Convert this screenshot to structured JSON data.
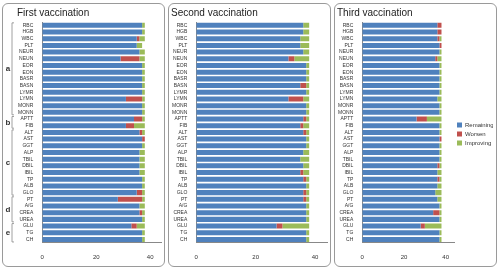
{
  "chart_data": [
    {
      "type": "bar",
      "title": "First vaccination",
      "orientation": "horizontal",
      "stacked": true,
      "grid": false,
      "categories": [
        "RBC",
        "HGB",
        "WBC",
        "PLT",
        "NEUR",
        "NEUN",
        "EOR",
        "EON",
        "BASR",
        "BASN",
        "LYMR",
        "LYMN",
        "MONR",
        "MONN",
        "APTT",
        "FIB",
        "ALT",
        "AST",
        "GGT",
        "ALP",
        "TBIL",
        "DBIL",
        "IBIL",
        "TP",
        "ALB",
        "GLO",
        "PT",
        "A/G",
        "CREA",
        "UREA",
        "GLU",
        "TG",
        "CH"
      ],
      "groups": [
        {
          "label": "a",
          "from": "RBC",
          "to": "MONN"
        },
        {
          "label": "b",
          "from": "APTT",
          "to": "FIB"
        },
        {
          "label": "c",
          "from": "ALT",
          "to": "GLO"
        },
        {
          "label": "d",
          "from": "PT",
          "to": "UREA"
        },
        {
          "label": "e",
          "from": "GLU",
          "to": "CH"
        }
      ],
      "series": [
        {
          "name": "Remaining",
          "color": "#4f81bd",
          "values": [
            37,
            37,
            35,
            35,
            36,
            29,
            37,
            37,
            37,
            37,
            37,
            31,
            37,
            37,
            34,
            31,
            36,
            37,
            37,
            36,
            36,
            36,
            36,
            37,
            37,
            35,
            28,
            36,
            36,
            37,
            33,
            37,
            37
          ]
        },
        {
          "name": "Worsen",
          "color": "#c0504d",
          "values": [
            0,
            0,
            1,
            0,
            0,
            7,
            0,
            0,
            0,
            0,
            0,
            6,
            0,
            0,
            3,
            3,
            1,
            1,
            0,
            0,
            0,
            0,
            0,
            0,
            0,
            2,
            9,
            0,
            1,
            0,
            2,
            0,
            0
          ]
        },
        {
          "name": "Improving",
          "color": "#9bbb59",
          "values": [
            1,
            1,
            2,
            2,
            2,
            2,
            1,
            1,
            1,
            1,
            1,
            1,
            1,
            1,
            1,
            4,
            1,
            0,
            1,
            2,
            2,
            2,
            2,
            1,
            1,
            1,
            1,
            2,
            1,
            1,
            3,
            1,
            1
          ]
        }
      ],
      "xlim": [
        0,
        44
      ],
      "xticks": [
        0,
        20,
        40
      ]
    },
    {
      "type": "bar",
      "title": "Second vaccination",
      "orientation": "horizontal",
      "stacked": true,
      "grid": false,
      "categories": [
        "RBC",
        "HGB",
        "WBC",
        "PLT",
        "NEUR",
        "NEUN",
        "EOR",
        "EON",
        "BASR",
        "BASN",
        "LYMR",
        "LYMN",
        "MONR",
        "MONN",
        "APTT",
        "FIB",
        "ALT",
        "AST",
        "GGT",
        "ALP",
        "TBIL",
        "DBIL",
        "IBIL",
        "TP",
        "ALB",
        "GLO",
        "PT",
        "A/G",
        "CREA",
        "UREA",
        "GLU",
        "TG",
        "CH"
      ],
      "series": [
        {
          "name": "Remaining",
          "color": "#4f81bd",
          "values": [
            36,
            36,
            35,
            35,
            36,
            31,
            37,
            37,
            37,
            35,
            37,
            31,
            37,
            37,
            36,
            35,
            36,
            37,
            37,
            36,
            35,
            36,
            35,
            36,
            37,
            36,
            36,
            37,
            37,
            37,
            27,
            37,
            37
          ]
        },
        {
          "name": "Worsen",
          "color": "#c0504d",
          "values": [
            0,
            0,
            0,
            0,
            0,
            2,
            0,
            0,
            0,
            2,
            0,
            5,
            0,
            0,
            1,
            1,
            1,
            0,
            0,
            0,
            0,
            0,
            1,
            1,
            0,
            1,
            1,
            0,
            0,
            0,
            2,
            0,
            0
          ]
        },
        {
          "name": "Improving",
          "color": "#9bbb59",
          "values": [
            2,
            2,
            3,
            3,
            2,
            5,
            1,
            1,
            1,
            1,
            1,
            2,
            1,
            1,
            1,
            2,
            1,
            1,
            1,
            2,
            3,
            2,
            2,
            1,
            1,
            1,
            1,
            1,
            1,
            1,
            9,
            1,
            1
          ]
        }
      ],
      "xlim": [
        0,
        44
      ],
      "xticks": [
        0,
        20,
        40
      ]
    },
    {
      "type": "bar",
      "title": "Third vaccination",
      "orientation": "horizontal",
      "stacked": true,
      "grid": false,
      "legend": "right",
      "categories": [
        "RBC",
        "HGB",
        "WBC",
        "PLT",
        "NEUR",
        "NEUN",
        "EOR",
        "EON",
        "BASR",
        "BASN",
        "LYMR",
        "LYMN",
        "MONR",
        "MONN",
        "APTT",
        "FIB",
        "ALT",
        "AST",
        "GGT",
        "ALP",
        "TBIL",
        "DBIL",
        "IBIL",
        "TP",
        "ALB",
        "GLO",
        "PT",
        "A/G",
        "CREA",
        "UREA",
        "GLU",
        "TG",
        "CH"
      ],
      "series": [
        {
          "name": "Remaining",
          "color": "#4f81bd",
          "values": [
            36,
            36,
            36,
            37,
            37,
            35,
            37,
            37,
            37,
            37,
            37,
            36,
            37,
            37,
            26,
            37,
            37,
            37,
            37,
            37,
            37,
            36,
            36,
            36,
            36,
            35,
            36,
            37,
            34,
            37,
            28,
            37,
            37
          ]
        },
        {
          "name": "Worsen",
          "color": "#c0504d",
          "values": [
            2,
            2,
            1,
            1,
            0,
            1,
            0,
            0,
            0,
            0,
            0,
            0,
            0,
            0,
            5,
            0,
            0,
            1,
            0,
            0,
            0,
            1,
            0,
            1,
            0,
            0,
            0,
            0,
            3,
            0,
            2,
            0,
            0
          ]
        },
        {
          "name": "Improving",
          "color": "#9bbb59",
          "values": [
            0,
            0,
            1,
            0,
            1,
            2,
            1,
            1,
            1,
            1,
            1,
            2,
            1,
            1,
            7,
            1,
            1,
            0,
            1,
            1,
            1,
            1,
            2,
            1,
            2,
            3,
            2,
            1,
            1,
            1,
            8,
            1,
            1
          ]
        }
      ],
      "xlim": [
        0,
        44
      ],
      "xticks": [
        0,
        20,
        40
      ]
    }
  ]
}
